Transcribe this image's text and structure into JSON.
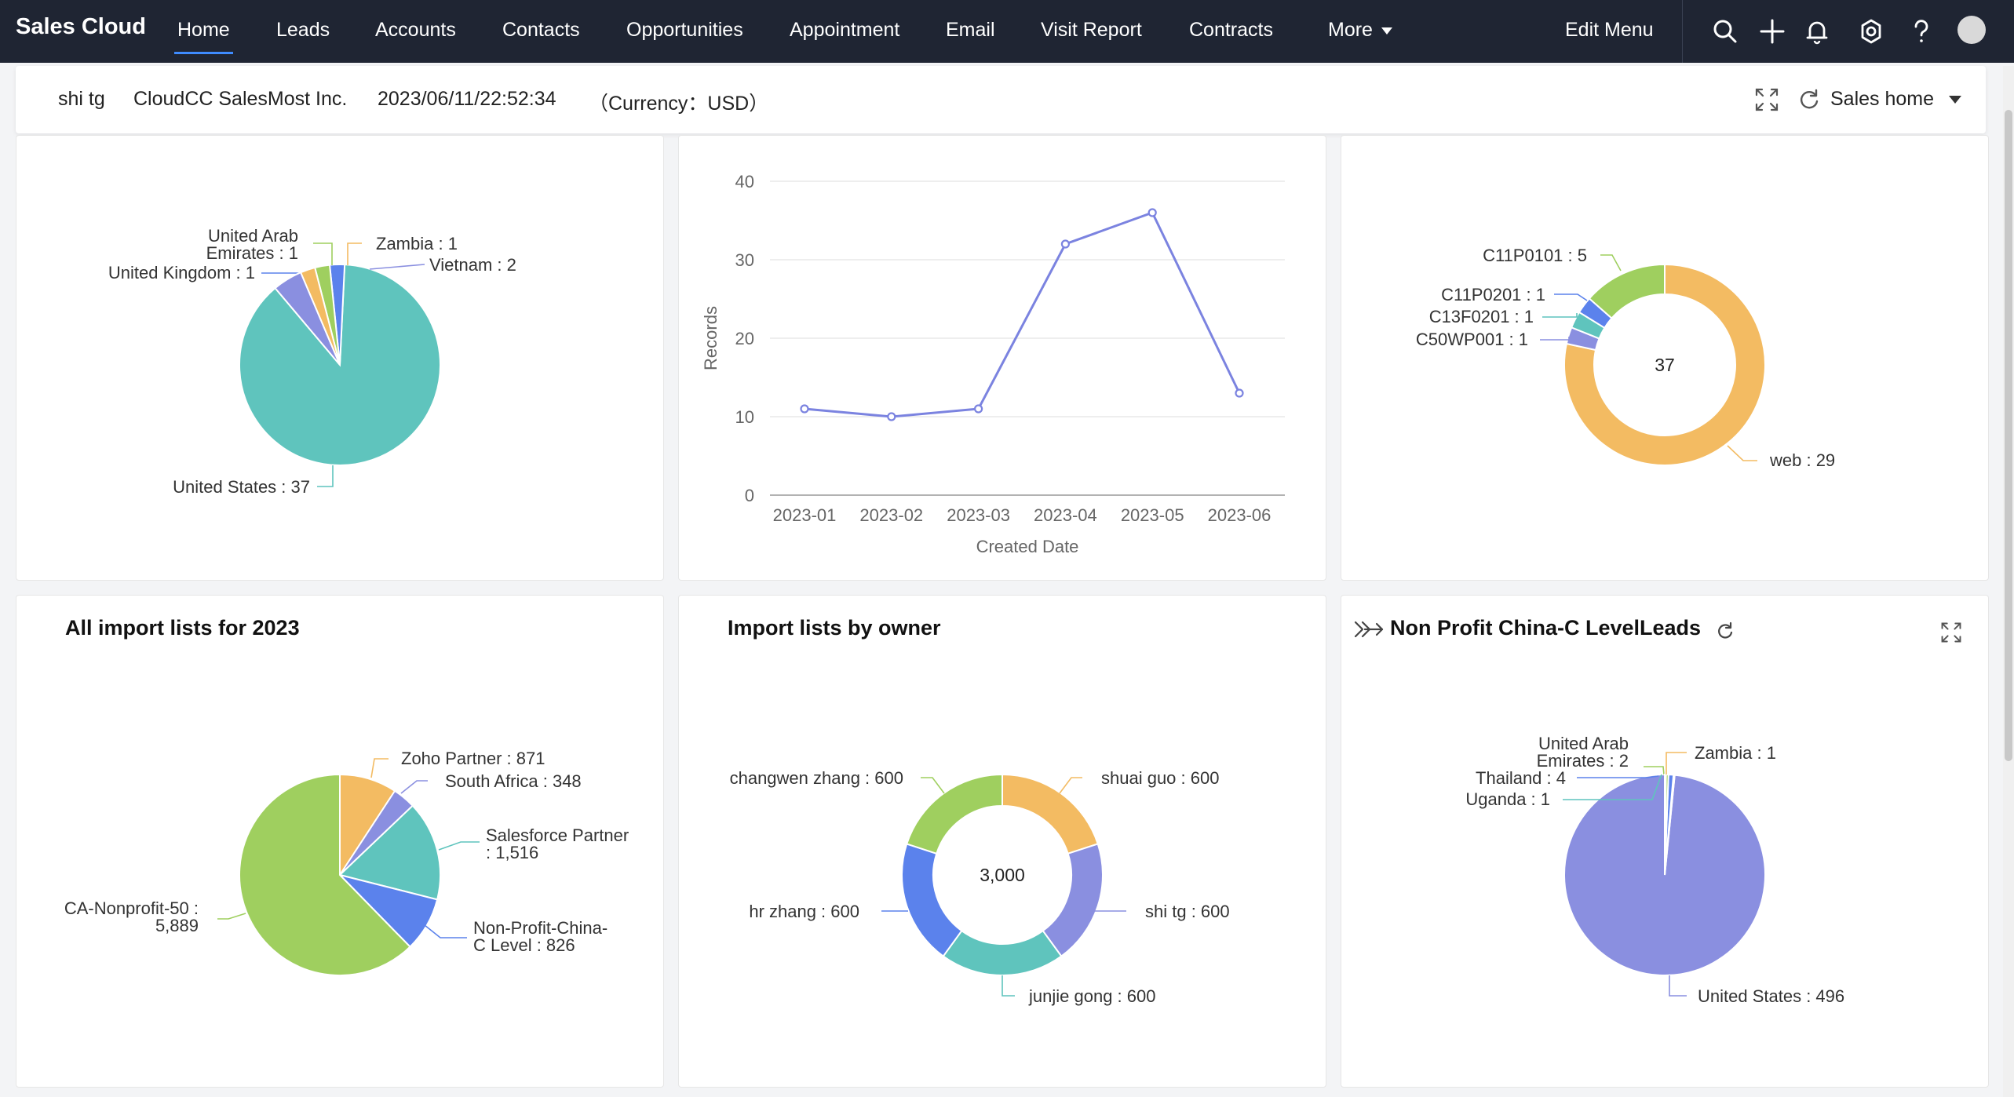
{
  "app": {
    "title": "Sales Cloud"
  },
  "nav": {
    "items": [
      "Home",
      "Leads",
      "Accounts",
      "Contacts",
      "Opportunities",
      "Appointment",
      "Email",
      "Visit Report",
      "Contracts"
    ],
    "more_label": "More",
    "edit_menu": "Edit Menu"
  },
  "infobar": {
    "user": "shi tg",
    "company": "CloudCC SalesMost Inc.",
    "datetime": "2023/06/11/22:52:34",
    "currency": "（Currency：USD）",
    "dashboard": "Sales home"
  },
  "panels": {
    "p4": {
      "title": "All import lists for 2023"
    },
    "p5": {
      "title": "Import lists by owner"
    },
    "p6": {
      "title": "Non Profit China-C LevelLeads"
    }
  },
  "colors": {
    "teal": "#5fc4bd",
    "blue": "#5b82ec",
    "green": "#9fcf5f",
    "orange": "#f3bb62",
    "purple": "#8a8fe0",
    "line": "#7b83e0"
  },
  "chart_data": [
    {
      "id": "countries-1",
      "type": "pie",
      "slices": [
        {
          "label": "United States : 37",
          "value": 37,
          "color": "#5fc4bd"
        },
        {
          "label": "United Kingdom : 1",
          "value": 1,
          "color": "#5b82ec"
        },
        {
          "label": "United Arab Emirates : 1",
          "value": 1,
          "color": "#9fcf5f"
        },
        {
          "label": "Zambia : 1",
          "value": 1,
          "color": "#f3bb62"
        },
        {
          "label": "Vietnam : 2",
          "value": 2,
          "color": "#8a8fe0"
        }
      ]
    },
    {
      "id": "records-by-date",
      "type": "line",
      "x": [
        "2023-01",
        "2023-02",
        "2023-03",
        "2023-04",
        "2023-05",
        "2023-06"
      ],
      "series": [
        {
          "values": [
            11,
            10,
            11,
            32,
            36,
            13
          ]
        }
      ],
      "xlabel": "Created Date",
      "ylabel": "Records",
      "yticks": [
        "0",
        "10",
        "20",
        "30",
        "40"
      ],
      "ylim": [
        0,
        40
      ],
      "grid": true
    },
    {
      "id": "source-donut",
      "type": "pie",
      "donut": true,
      "center": "37",
      "slices": [
        {
          "label": "web : 29",
          "value": 29,
          "color": "#f3bb62"
        },
        {
          "label": "C50WP001 : 1",
          "value": 1,
          "color": "#8a8fe0"
        },
        {
          "label": "C13F0201 : 1",
          "value": 1,
          "color": "#5fc4bd"
        },
        {
          "label": "C11P0201 : 1",
          "value": 1,
          "color": "#5b82ec"
        },
        {
          "label": "C11P0101 : 5",
          "value": 5,
          "color": "#9fcf5f"
        }
      ]
    },
    {
      "id": "import-lists-2023",
      "type": "pie",
      "slices": [
        {
          "label": "Zoho Partner : 871",
          "value": 871,
          "color": "#f3bb62"
        },
        {
          "label": "South Africa : 348",
          "value": 348,
          "color": "#8a8fe0"
        },
        {
          "label": "Salesforce Partner : 1,516",
          "value": 1516,
          "color": "#5fc4bd"
        },
        {
          "label": "Non-Profit-China-C Level : 826",
          "value": 826,
          "color": "#5b82ec"
        },
        {
          "label": "CA-Nonprofit-50 : 5,889",
          "value": 5889,
          "color": "#9fcf5f"
        }
      ]
    },
    {
      "id": "import-lists-owner",
      "type": "pie",
      "donut": true,
      "center": "3,000",
      "slices": [
        {
          "label": "shuai guo : 600",
          "value": 600,
          "color": "#f3bb62"
        },
        {
          "label": "shi tg : 600",
          "value": 600,
          "color": "#8a8fe0"
        },
        {
          "label": "junjie gong : 600",
          "value": 600,
          "color": "#5fc4bd"
        },
        {
          "label": "hr zhang : 600",
          "value": 600,
          "color": "#5b82ec"
        },
        {
          "label": "changwen zhang : 600",
          "value": 600,
          "color": "#9fcf5f"
        }
      ]
    },
    {
      "id": "non-profit-leads",
      "type": "pie",
      "slices": [
        {
          "label": "United States : 496",
          "value": 496,
          "color": "#8a8fe0"
        },
        {
          "label": "Uganda : 1",
          "value": 1,
          "color": "#5fc4bd"
        },
        {
          "label": "Thailand : 4",
          "value": 4,
          "color": "#5b82ec"
        },
        {
          "label": "United Arab Emirates : 2",
          "value": 2,
          "color": "#9fcf5f"
        },
        {
          "label": "Zambia : 1",
          "value": 1,
          "color": "#f3bb62"
        }
      ]
    }
  ]
}
